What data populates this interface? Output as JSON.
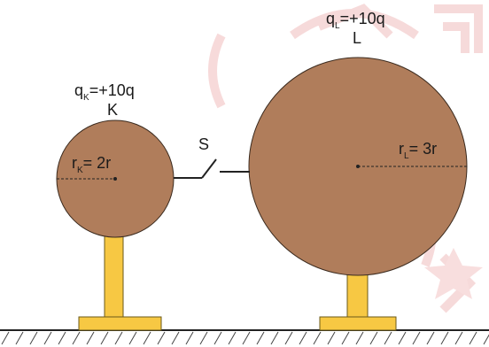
{
  "sphere_k": {
    "charge_symbol": "q",
    "charge_subscript": "K",
    "charge_value": "=+10q",
    "name": "K",
    "radius_symbol": "r",
    "radius_subscript": "K",
    "radius_value": "= 2r"
  },
  "sphere_l": {
    "charge_symbol": "q",
    "charge_subscript": "L",
    "charge_value": "=+10q",
    "name": "L",
    "radius_symbol": "r",
    "radius_subscript": "L",
    "radius_value": "= 3r"
  },
  "switch": {
    "label": "S"
  },
  "colors": {
    "sphere": "#b07d5b",
    "stand": "#f7c843",
    "watermark": "#f6d6d6",
    "line": "#222222"
  }
}
